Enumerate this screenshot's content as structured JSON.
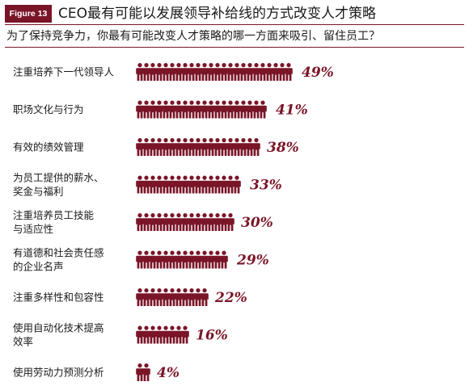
{
  "header": {
    "figure_tag": "Figure 13",
    "title": "CEO最有可能以发展领导补给线的方式改变人才策略",
    "question": "为了保持竞争力，你最有可能改变人才策略的哪一方面来吸引、留住员工？"
  },
  "colors": {
    "accent": "#7a1528",
    "text": "#1a1a1a"
  },
  "icon": "person-icon",
  "chart_data": {
    "type": "bar",
    "orientation": "horizontal",
    "title": "CEO最有可能以发展领导补给线的方式改变人才策略",
    "subtitle": "为了保持竞争力，你最有可能改变人才策略的哪一方面来吸引、留住员工？",
    "categories": [
      [
        "注重培养下一代领导人"
      ],
      [
        "职场文化与行为"
      ],
      [
        "有效的绩效管理"
      ],
      [
        "为员工提供的薪水、",
        "奖金与福利"
      ],
      [
        "注重培养员工技能",
        "与适应性"
      ],
      [
        "有道德和社会责任感",
        "的企业名声"
      ],
      [
        "注重多样性和包容性"
      ],
      [
        "使用自动化技术提高",
        "效率"
      ],
      [
        "使用劳动力预测分析"
      ]
    ],
    "values": [
      49,
      41,
      38,
      33,
      30,
      29,
      22,
      16,
      4
    ],
    "value_labels": [
      "49%",
      "41%",
      "38%",
      "33%",
      "30%",
      "29%",
      "22%",
      "16%",
      "4%"
    ],
    "unit": "%"
  }
}
